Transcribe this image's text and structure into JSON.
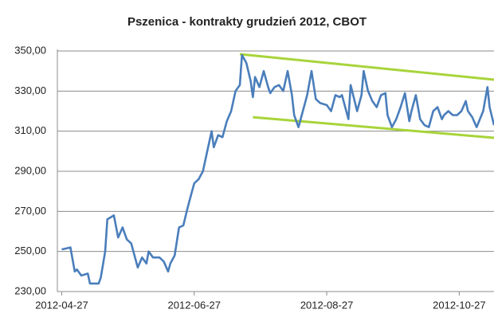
{
  "chart_data": {
    "type": "line",
    "title": "Pszenica - kontrakty grudzień 2012, CBOT",
    "x": [
      "2012-04-27",
      "2012-05-01",
      "2012-05-03",
      "2012-05-04",
      "2012-05-06",
      "2012-05-09",
      "2012-05-10",
      "2012-05-12",
      "2012-05-14",
      "2012-05-15",
      "2012-05-17",
      "2012-05-18",
      "2012-05-21",
      "2012-05-23",
      "2012-05-25",
      "2012-05-27",
      "2012-05-29",
      "2012-06-01",
      "2012-06-03",
      "2012-06-05",
      "2012-06-06",
      "2012-06-08",
      "2012-06-11",
      "2012-06-13",
      "2012-06-15",
      "2012-06-16",
      "2012-06-18",
      "2012-06-20",
      "2012-06-22",
      "2012-06-24",
      "2012-06-26",
      "2012-06-27",
      "2012-06-29",
      "2012-07-01",
      "2012-07-03",
      "2012-07-05",
      "2012-07-06",
      "2012-07-08",
      "2012-07-10",
      "2012-07-12",
      "2012-07-14",
      "2012-07-16",
      "2012-07-18",
      "2012-07-19",
      "2012-07-21",
      "2012-07-23",
      "2012-07-24",
      "2012-07-25",
      "2012-07-27",
      "2012-07-29",
      "2012-07-31",
      "2012-08-01",
      "2012-08-03",
      "2012-08-05",
      "2012-08-07",
      "2012-08-09",
      "2012-08-11",
      "2012-08-12",
      "2012-08-14",
      "2012-08-16",
      "2012-08-18",
      "2012-08-20",
      "2012-08-22",
      "2012-08-24",
      "2012-08-27",
      "2012-08-29",
      "2012-08-31",
      "2012-09-02",
      "2012-09-03",
      "2012-09-06",
      "2012-09-07",
      "2012-09-10",
      "2012-09-12",
      "2012-09-13",
      "2012-09-15",
      "2012-09-17",
      "2012-09-19",
      "2012-09-21",
      "2012-09-23",
      "2012-09-24",
      "2012-09-26",
      "2012-09-28",
      "2012-09-30",
      "2012-10-02",
      "2012-10-04",
      "2012-10-05",
      "2012-10-07",
      "2012-10-09",
      "2012-10-11",
      "2012-10-13",
      "2012-10-15",
      "2012-10-17",
      "2012-10-19",
      "2012-10-20",
      "2012-10-22",
      "2012-10-24",
      "2012-10-26",
      "2012-10-28",
      "2012-10-30",
      "2012-10-31",
      "2012-11-02",
      "2012-11-04",
      "2012-11-07",
      "2012-11-09",
      "2012-11-10",
      "2012-11-12"
    ],
    "series": [
      {
        "color": "#4a7ebb",
        "values": [
          251,
          252,
          240,
          241,
          238,
          239,
          234,
          234,
          234,
          237,
          250,
          266,
          268,
          257,
          262,
          256,
          254,
          242,
          247,
          244,
          250,
          247,
          247,
          245,
          240,
          244,
          248,
          262,
          263,
          272,
          280,
          284,
          286,
          290,
          300,
          310,
          302,
          308,
          307,
          315,
          320,
          330,
          333,
          348,
          344,
          335,
          327,
          337,
          332,
          340,
          332,
          329,
          332,
          333,
          330,
          340,
          328,
          318,
          312,
          320,
          328,
          340,
          326,
          324,
          323,
          320,
          328,
          327,
          328,
          316,
          333,
          320,
          328,
          340,
          330,
          325,
          322,
          328,
          329,
          318,
          312,
          316,
          322,
          329,
          315,
          320,
          328,
          316,
          313,
          312,
          320,
          322,
          316,
          318,
          320,
          318,
          318,
          320,
          325,
          320,
          317,
          312,
          320,
          332,
          322,
          313
        ]
      }
    ],
    "trendlines": [
      {
        "color": "#a8d43a",
        "x": [
          "2012-07-18",
          "2012-11-12"
        ],
        "values": [
          348.4,
          335.7
        ]
      },
      {
        "color": "#a8d43a",
        "x": [
          "2012-07-24",
          "2012-11-12"
        ],
        "values": [
          317,
          306.7
        ]
      }
    ],
    "xlim": [
      "2012-04-25",
      "2012-11-12"
    ],
    "xticks": [
      "2012-04-27",
      "2012-06-27",
      "2012-08-27",
      "2012-10-27"
    ],
    "ylim": [
      230,
      350
    ],
    "yticks": [
      {
        "value": 230,
        "label": "230,00"
      },
      {
        "value": 250,
        "label": "250,00"
      },
      {
        "value": 270,
        "label": "270,00"
      },
      {
        "value": 290,
        "label": "290,00"
      },
      {
        "value": 310,
        "label": "310,00"
      },
      {
        "value": 330,
        "label": "330,00"
      },
      {
        "value": 350,
        "label": "350,00"
      }
    ],
    "grid": true
  }
}
